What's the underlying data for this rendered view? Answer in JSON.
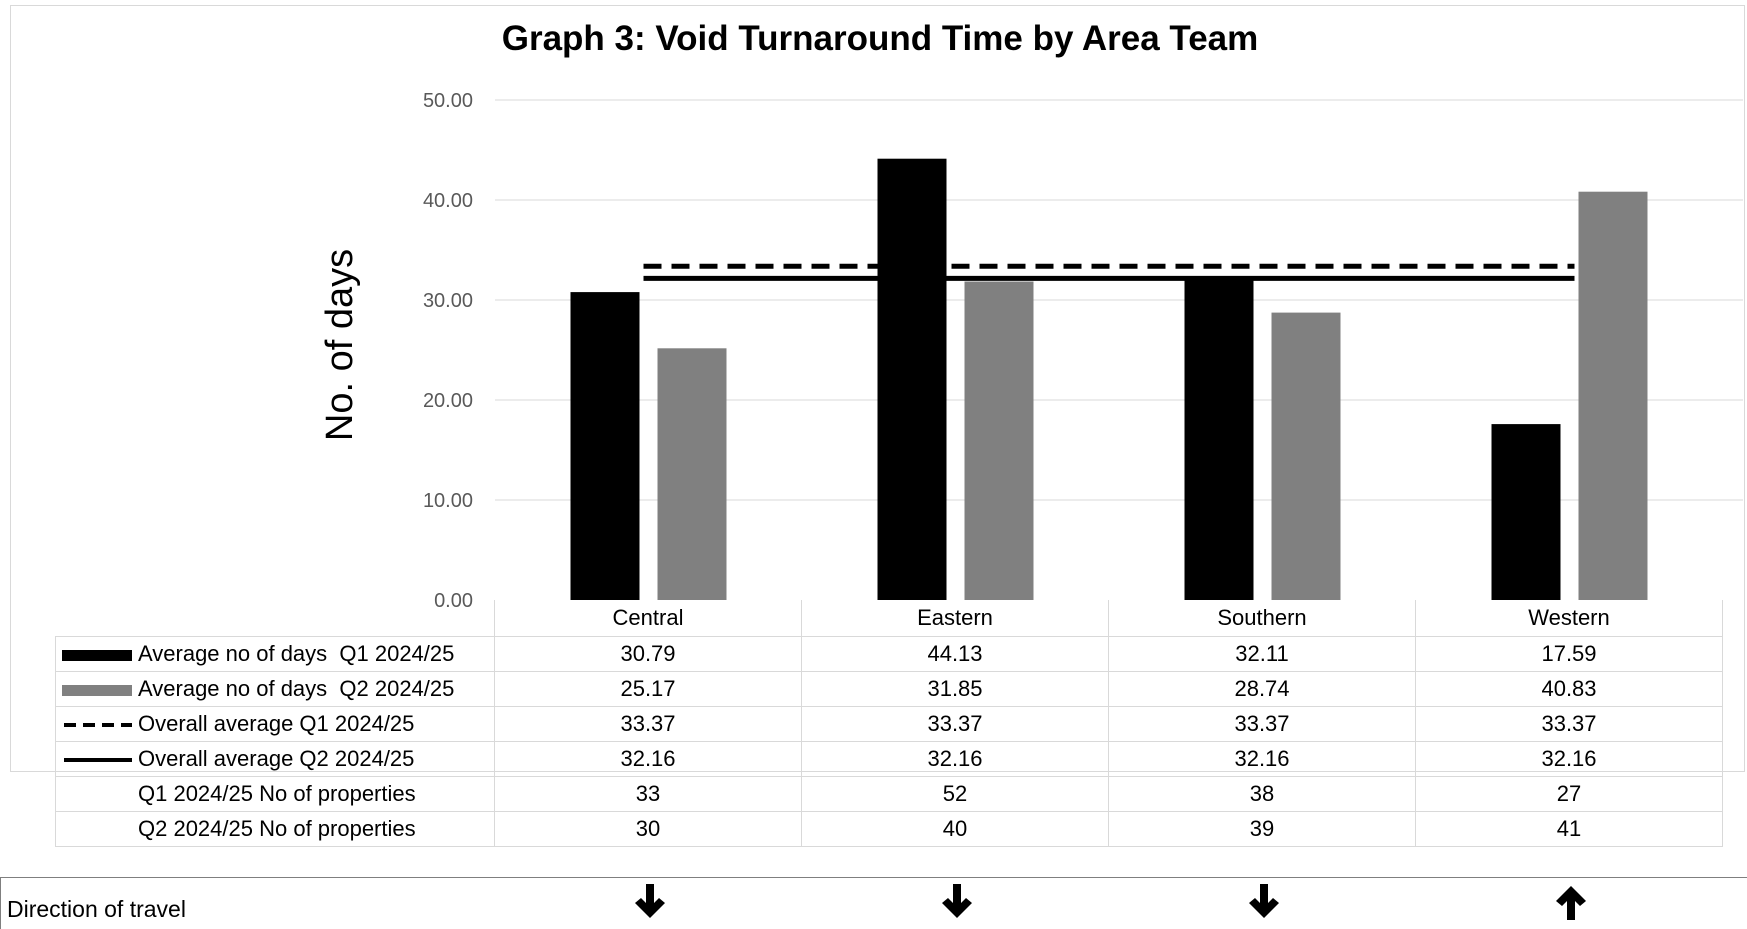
{
  "chart_data": {
    "type": "bar",
    "title": "Graph 3: Void Turnaround Time by Area Team",
    "ylabel": "No. of days",
    "xlabel": "",
    "ylim": [
      0,
      50
    ],
    "yticks": [
      "0.00",
      "10.00",
      "20.00",
      "30.00",
      "40.00",
      "50.00"
    ],
    "grid": true,
    "categories": [
      "Central",
      "Eastern",
      "Southern",
      "Western"
    ],
    "series": [
      {
        "name": "Average no of days  Q1 2024/25",
        "kind": "bar",
        "color": "#000000",
        "values": [
          30.79,
          44.13,
          32.11,
          17.59
        ],
        "labels": [
          "30.79",
          "44.13",
          "32.11",
          "17.59"
        ]
      },
      {
        "name": "Average no of days  Q2 2024/25",
        "kind": "bar",
        "color": "#808080",
        "values": [
          25.17,
          31.85,
          28.74,
          40.83
        ],
        "labels": [
          "25.17",
          "31.85",
          "28.74",
          "40.83"
        ]
      },
      {
        "name": "Overall average Q1 2024/25",
        "kind": "dashed-line",
        "color": "#000000",
        "values": [
          33.37,
          33.37,
          33.37,
          33.37
        ],
        "labels": [
          "33.37",
          "33.37",
          "33.37",
          "33.37"
        ]
      },
      {
        "name": "Overall average Q2 2024/25",
        "kind": "solid-line",
        "color": "#000000",
        "values": [
          32.16,
          32.16,
          32.16,
          32.16
        ],
        "labels": [
          "32.16",
          "32.16",
          "32.16",
          "32.16"
        ]
      }
    ],
    "extra_rows": [
      {
        "name": "Q1 2024/25 No of properties",
        "values": [
          "33",
          "52",
          "38",
          "27"
        ]
      },
      {
        "name": "Q2 2024/25 No of properties",
        "values": [
          "30",
          "40",
          "39",
          "41"
        ]
      }
    ]
  },
  "direction_of_travel": {
    "label": "Direction of travel",
    "arrows": [
      "down",
      "down",
      "down",
      "up"
    ]
  }
}
